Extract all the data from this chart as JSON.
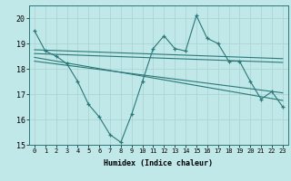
{
  "title": "",
  "xlabel": "Humidex (Indice chaleur)",
  "bg_color": "#c0e8e8",
  "line_color": "#2a7878",
  "grid_color": "#a8d0d0",
  "xlim": [
    -0.5,
    23.5
  ],
  "ylim": [
    15,
    20.5
  ],
  "xticks": [
    0,
    1,
    2,
    3,
    4,
    5,
    6,
    7,
    8,
    9,
    10,
    11,
    12,
    13,
    14,
    15,
    16,
    17,
    18,
    19,
    20,
    21,
    22,
    23
  ],
  "yticks": [
    15,
    16,
    17,
    18,
    19,
    20
  ],
  "main_x": [
    0,
    1,
    2,
    3,
    4,
    5,
    6,
    7,
    8,
    9,
    10,
    11,
    12,
    13,
    14,
    15,
    16,
    17,
    18,
    19,
    20,
    21,
    22,
    23
  ],
  "main_y": [
    19.5,
    18.7,
    18.5,
    18.2,
    17.5,
    16.6,
    16.1,
    15.4,
    15.1,
    16.2,
    17.5,
    18.8,
    19.3,
    18.8,
    18.7,
    20.1,
    19.2,
    19.0,
    18.3,
    18.3,
    17.5,
    16.8,
    17.1,
    16.5
  ],
  "trend1_x": [
    0,
    23
  ],
  "trend1_y": [
    18.75,
    18.4
  ],
  "trend2_x": [
    0,
    23
  ],
  "trend2_y": [
    18.6,
    18.25
  ],
  "trend3_x": [
    0,
    23
  ],
  "trend3_y": [
    18.45,
    16.75
  ],
  "trend4_x": [
    0,
    23
  ],
  "trend4_y": [
    18.3,
    17.05
  ]
}
